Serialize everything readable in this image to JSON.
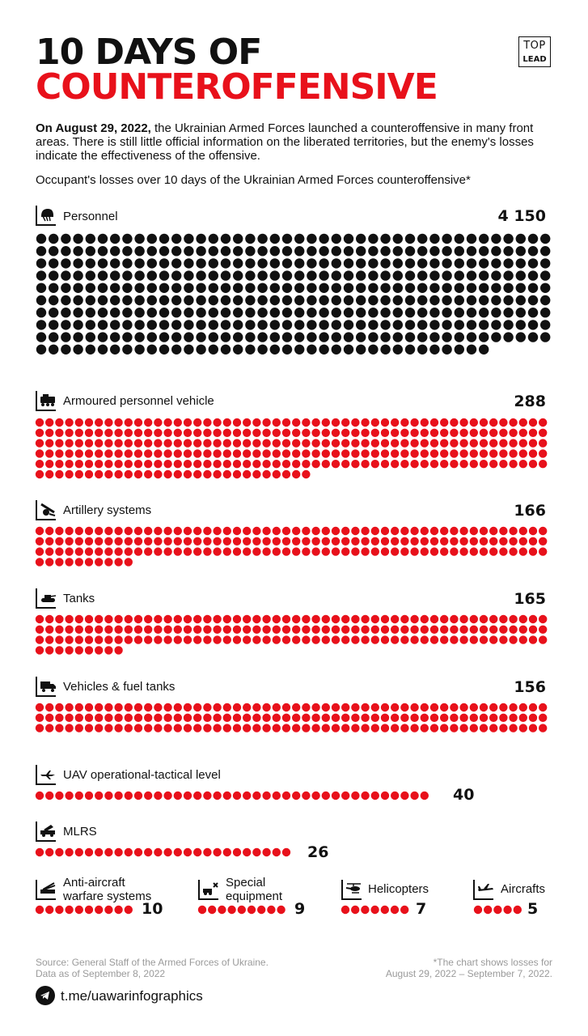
{
  "title": {
    "line1": "10 DAYS OF",
    "line2": "COUNTEROFFENSIVE"
  },
  "logo": {
    "top": "TOP",
    "bottom": "LEAD"
  },
  "intro": {
    "bold": "On August 29, 2022,",
    "text": " the Ukrainian Armed Forces launched a counteroffensive in many front areas. There is still little official information on the liberated territories, but the enemy's losses indicate the effectiveness of the offensive."
  },
  "subtitle": "Occupant's losses over 10 days of the Ukrainian Armed Forces counteroffensive*",
  "chart_data": {
    "type": "pictogram",
    "title": "Occupant's losses over 10 days of the Ukrainian Armed Forces counteroffensive*",
    "series": [
      {
        "key": "personnel",
        "label": "Personnel",
        "value": 4150,
        "value_label": "4 150",
        "icon": "soldier-helmet-icon",
        "color": "#111111",
        "dot_count": 415
      },
      {
        "key": "apv",
        "label": "Armoured personnel vehicle",
        "value": 288,
        "value_label": "288",
        "icon": "armoured-vehicle-icon",
        "color": "#e8111b"
      },
      {
        "key": "artillery",
        "label": "Artillery systems",
        "value": 166,
        "value_label": "166",
        "icon": "artillery-icon",
        "color": "#e8111b"
      },
      {
        "key": "tanks",
        "label": "Tanks",
        "value": 165,
        "value_label": "165",
        "icon": "tank-icon",
        "color": "#e8111b"
      },
      {
        "key": "vehicles",
        "label": "Vehicles & fuel tanks",
        "value": 156,
        "value_label": "156",
        "icon": "truck-icon",
        "color": "#e8111b"
      },
      {
        "key": "uav",
        "label": "UAV operational-tactical level",
        "value": 40,
        "value_label": "40",
        "icon": "drone-icon",
        "color": "#e8111b"
      },
      {
        "key": "mlrs",
        "label": "MLRS",
        "value": 26,
        "value_label": "26",
        "icon": "rocket-launcher-icon",
        "color": "#e8111b"
      },
      {
        "key": "aa",
        "label": "Anti-aircraft warfare systems",
        "value": 10,
        "value_label": "10",
        "icon": "anti-aircraft-icon",
        "color": "#e8111b"
      },
      {
        "key": "special",
        "label": "Special equipment",
        "value": 9,
        "value_label": "9",
        "icon": "special-equipment-icon",
        "color": "#e8111b"
      },
      {
        "key": "heli",
        "label": "Helicopters",
        "value": 7,
        "value_label": "7",
        "icon": "helicopter-icon",
        "color": "#e8111b"
      },
      {
        "key": "air",
        "label": "Aircrafts",
        "value": 5,
        "value_label": "5",
        "icon": "aircraft-icon",
        "color": "#e8111b"
      }
    ],
    "legend": {
      "dot_meaning": "personnel dots represent 10 persons each"
    }
  },
  "labels": {
    "aa_line1": "Anti-aircraft",
    "aa_line2": "warfare systems",
    "special_line1": "Special",
    "special_line2": "equipment"
  },
  "footer": {
    "source_line1": "Source: General Staff of the Armed Forces of Ukraine.",
    "source_line2": "Data as of September 8, 2022",
    "note_line1": "*The chart shows losses for",
    "note_line2": "August 29, 2022 – September 7, 2022.",
    "telegram": "t.me/uawarinfographics"
  }
}
